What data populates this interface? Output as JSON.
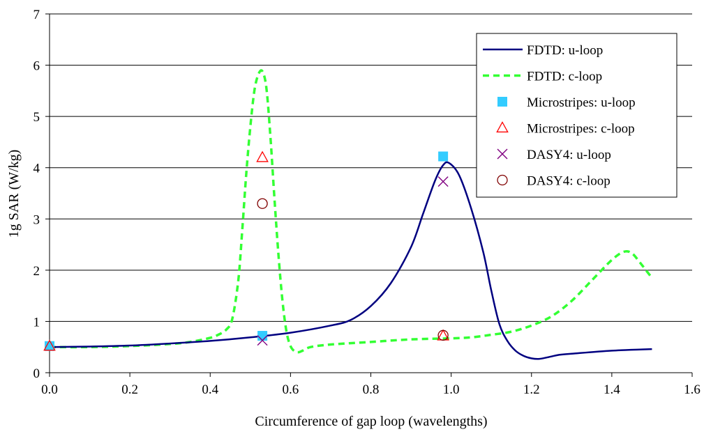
{
  "chart_data": {
    "type": "line",
    "title": "",
    "xlabel": "Circumference of gap loop (wavelengths)",
    "ylabel": "1g SAR (W/kg)",
    "xlim": [
      0,
      1.6
    ],
    "ylim": [
      0,
      7
    ],
    "xticks": [
      0.0,
      0.2,
      0.4,
      0.6,
      0.8,
      1.0,
      1.2,
      1.4,
      1.6
    ],
    "xtick_labels": [
      "0.0",
      "0.2",
      "0.4",
      "0.6",
      "0.8",
      "1.0",
      "1.2",
      "1.4",
      "1.6"
    ],
    "yticks": [
      0,
      1,
      2,
      3,
      4,
      5,
      6,
      7
    ],
    "ytick_labels": [
      "0",
      "1",
      "2",
      "3",
      "4",
      "5",
      "6",
      "7"
    ],
    "grid": "horizontal",
    "legend_position": "top-right",
    "series": [
      {
        "name": "FDTD: u-loop",
        "kind": "line",
        "style": "solid",
        "color": "#000080",
        "x": [
          0,
          0.1,
          0.2,
          0.3,
          0.4,
          0.5,
          0.6,
          0.7,
          0.75,
          0.8,
          0.85,
          0.9,
          0.93,
          0.96,
          0.98,
          0.995,
          1.02,
          1.05,
          1.08,
          1.1,
          1.12,
          1.14,
          1.16,
          1.18,
          1.2,
          1.22,
          1.24,
          1.27,
          1.3,
          1.4,
          1.5
        ],
        "y": [
          0.5,
          0.51,
          0.53,
          0.57,
          0.62,
          0.69,
          0.78,
          0.92,
          1.03,
          1.3,
          1.75,
          2.45,
          3.1,
          3.75,
          4.05,
          4.09,
          3.85,
          3.2,
          2.35,
          1.6,
          0.95,
          0.62,
          0.43,
          0.33,
          0.28,
          0.27,
          0.3,
          0.35,
          0.37,
          0.43,
          0.46
        ]
      },
      {
        "name": "FDTD: c-loop",
        "kind": "line",
        "style": "dashed",
        "color": "#33ff33",
        "x": [
          0,
          0.1,
          0.2,
          0.3,
          0.35,
          0.4,
          0.42,
          0.44,
          0.455,
          0.47,
          0.48,
          0.49,
          0.5,
          0.51,
          0.52,
          0.53,
          0.54,
          0.55,
          0.56,
          0.57,
          0.58,
          0.59,
          0.6,
          0.61,
          0.62,
          0.63,
          0.65,
          0.7,
          0.8,
          0.9,
          1.0,
          1.05,
          1.1,
          1.15,
          1.2,
          1.25,
          1.3,
          1.35,
          1.4,
          1.43,
          1.45,
          1.47,
          1.49,
          1.5
        ],
        "y": [
          0.5,
          0.5,
          0.52,
          0.56,
          0.6,
          0.68,
          0.74,
          0.84,
          1.05,
          1.8,
          2.8,
          3.9,
          4.8,
          5.5,
          5.82,
          5.88,
          5.55,
          4.6,
          3.4,
          2.3,
          1.4,
          0.8,
          0.52,
          0.42,
          0.4,
          0.43,
          0.5,
          0.55,
          0.6,
          0.65,
          0.67,
          0.69,
          0.74,
          0.8,
          0.92,
          1.1,
          1.4,
          1.8,
          2.2,
          2.36,
          2.33,
          2.15,
          1.95,
          1.85
        ]
      },
      {
        "name": "Microstripes: u-loop",
        "kind": "marker",
        "marker": "square",
        "color": "#33ccff",
        "x": [
          0,
          0.53,
          0.98
        ],
        "y": [
          0.52,
          0.72,
          4.22
        ]
      },
      {
        "name": "Microstripes: c-loop",
        "kind": "marker",
        "marker": "triangle",
        "color": "#ff0000",
        "x": [
          0,
          0.53,
          0.98
        ],
        "y": [
          0.52,
          4.2,
          0.72
        ]
      },
      {
        "name": "DASY4: u-loop",
        "kind": "marker",
        "marker": "x",
        "color": "#800080",
        "x": [
          0.53,
          0.98
        ],
        "y": [
          0.63,
          3.73
        ]
      },
      {
        "name": "DASY4: c-loop",
        "kind": "marker",
        "marker": "circle",
        "color": "#800000",
        "x": [
          0.53,
          0.98
        ],
        "y": [
          3.3,
          0.73
        ]
      }
    ]
  }
}
